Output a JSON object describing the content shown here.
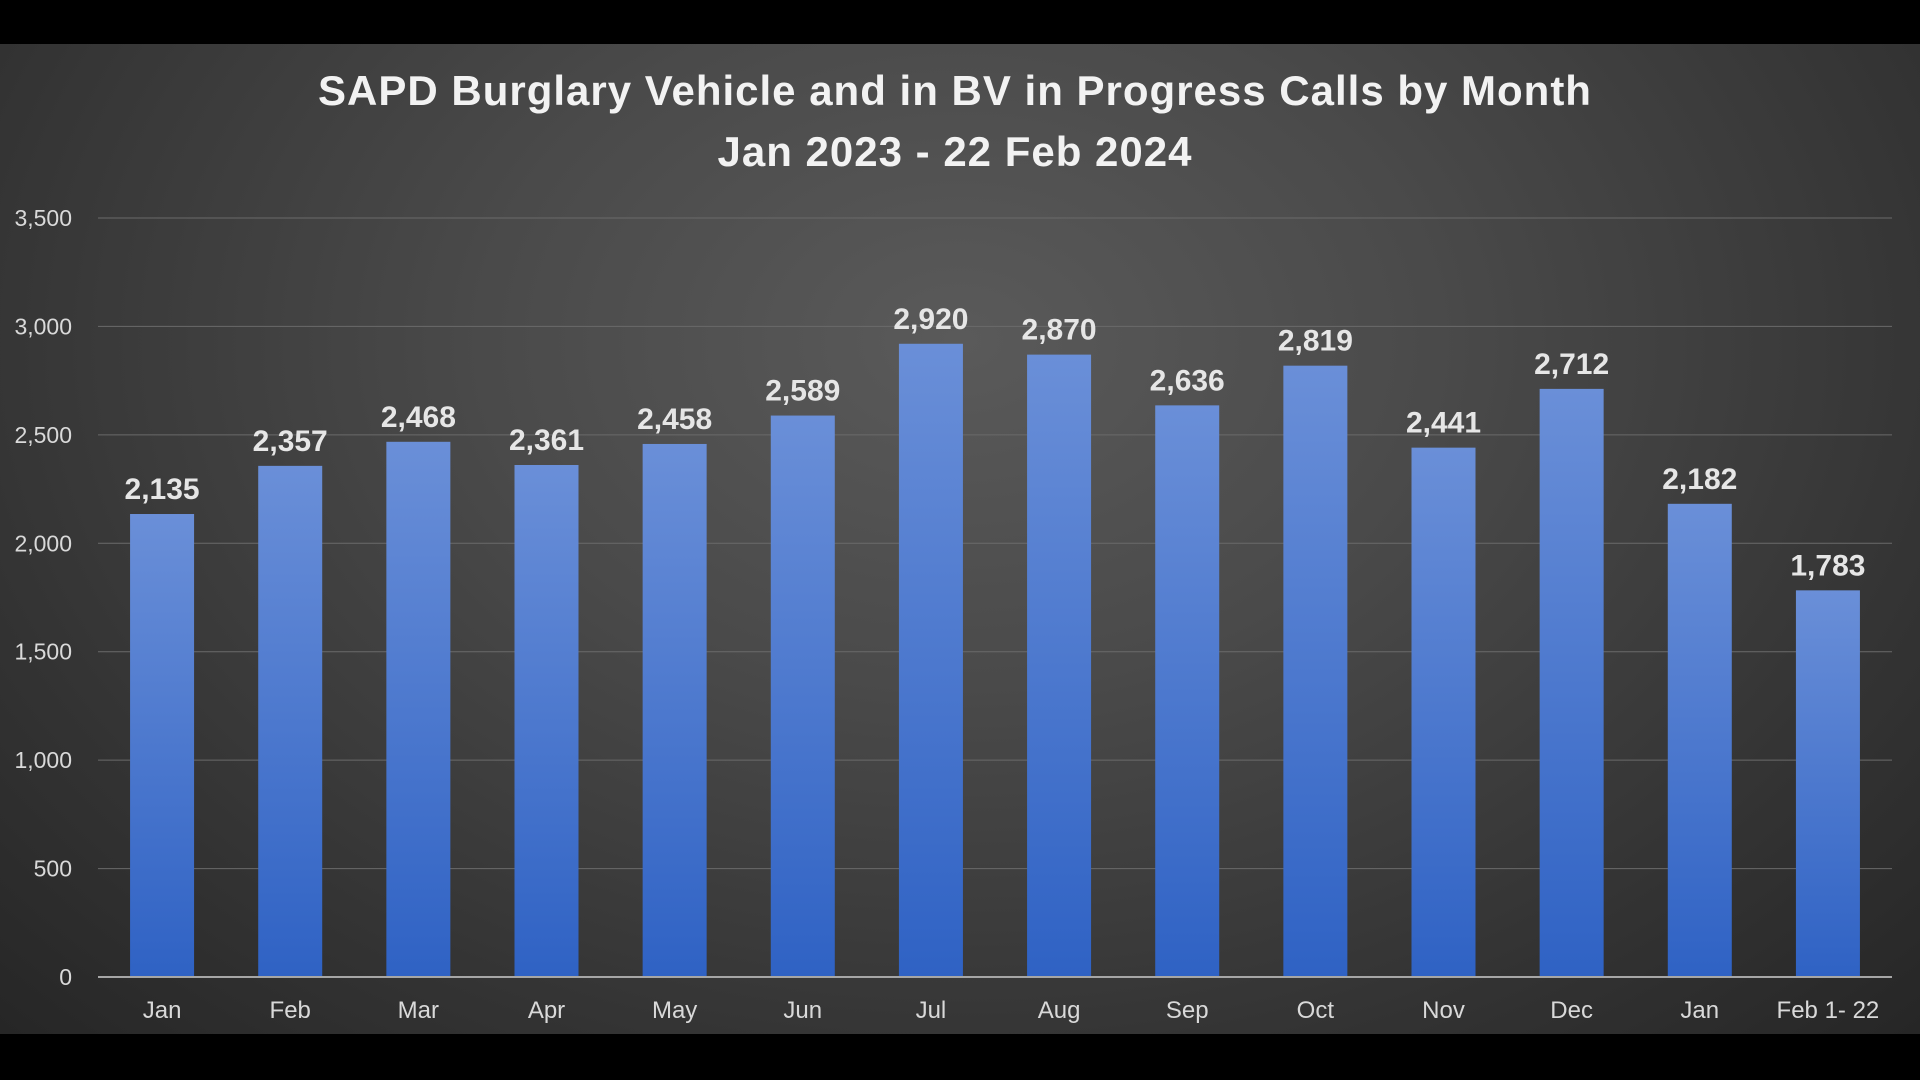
{
  "chart_data": {
    "type": "bar",
    "title": "SAPD Burglary Vehicle and in BV in Progress Calls by Month",
    "subtitle": "Jan 2023 - 22 Feb 2024",
    "categories": [
      "Jan",
      "Feb",
      "Mar",
      "Apr",
      "May",
      "Jun",
      "Jul",
      "Aug",
      "Sep",
      "Oct",
      "Nov",
      "Dec",
      "Jan",
      "Feb 1- 22"
    ],
    "values": [
      2135,
      2357,
      2468,
      2361,
      2458,
      2589,
      2920,
      2870,
      2636,
      2819,
      2441,
      2712,
      2182,
      1783
    ],
    "data_labels": [
      "2,135",
      "2,357",
      "2,468",
      "2,361",
      "2,458",
      "2,589",
      "2,920",
      "2,870",
      "2,636",
      "2,819",
      "2,441",
      "2,712",
      "2,182",
      "1,783"
    ],
    "y_ticks": [
      0,
      500,
      1000,
      1500,
      2000,
      2500,
      3000,
      3500
    ],
    "y_tick_labels": [
      "0",
      "500",
      "1,000",
      "1,500",
      "2,000",
      "2,500",
      "3,000",
      "3,500"
    ],
    "xlabel": "",
    "ylabel": "",
    "ylim": [
      0,
      3500
    ],
    "grid": true,
    "legend": "none",
    "colors": {
      "bar_top": "#6a8fd8",
      "bar_bottom": "#2f62c4",
      "frame_background": "#3c3c3c",
      "outer_background": "#000000"
    }
  }
}
